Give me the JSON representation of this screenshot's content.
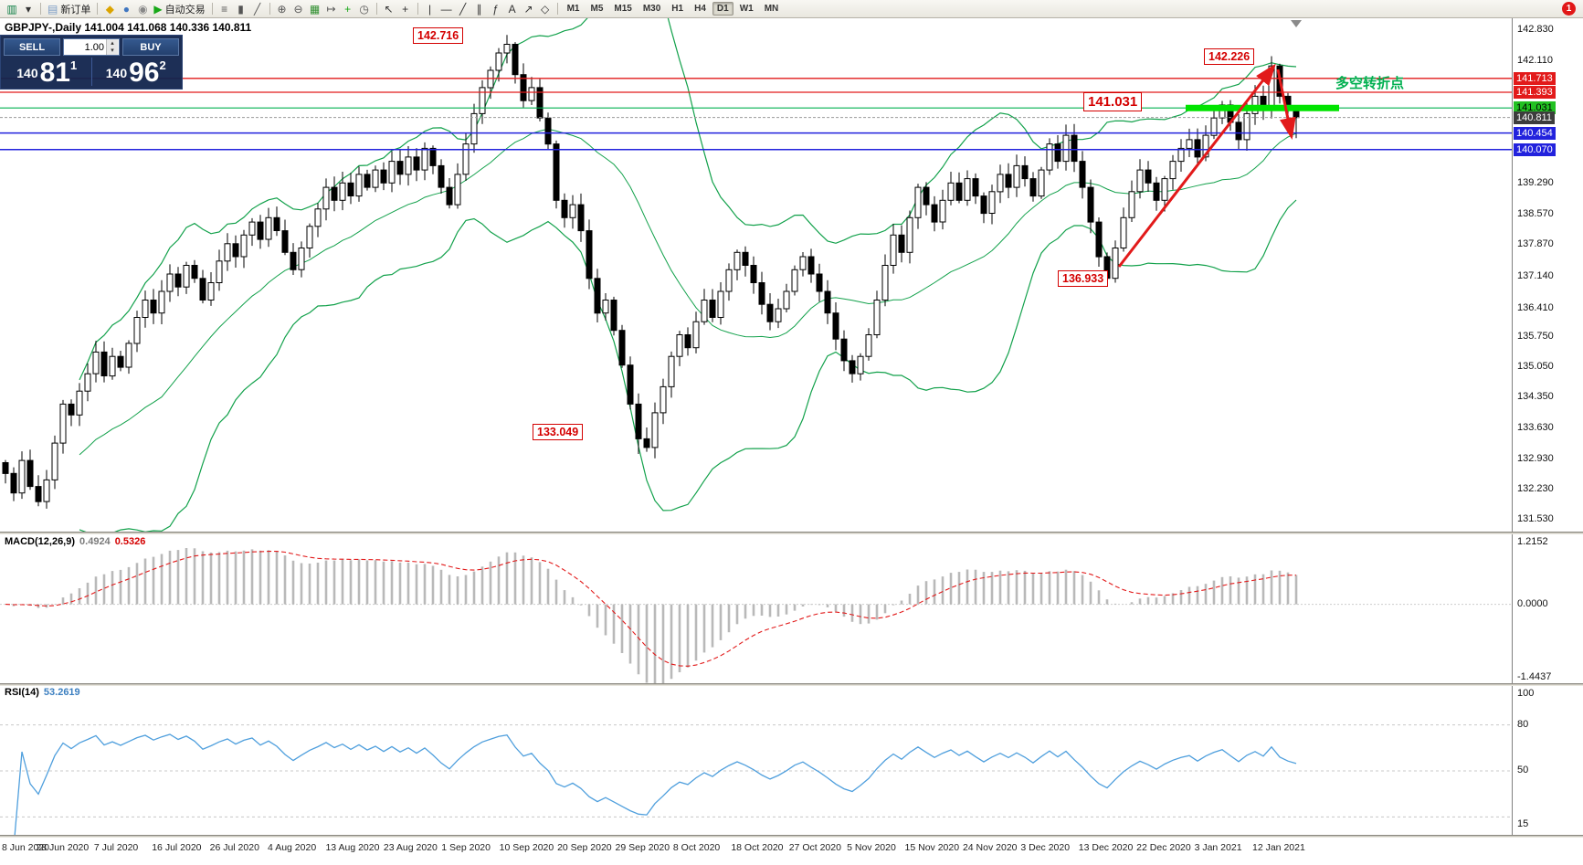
{
  "colors": {
    "candle_up": "#ffffff",
    "candle_down": "#000000",
    "candle_outline": "#000000",
    "bollinger": "#12a14b",
    "macd_histogram": "#b9b9b9",
    "macd_signal": "#e21a1a",
    "rsi_line": "#4f9fdd",
    "highlight_green": "#00e400",
    "arrow_red": "#e21a1a",
    "level_red": "#e21a1a",
    "level_blue": "#2222dd",
    "level_green": "#00b050",
    "bid_line": "#999999"
  },
  "toolbar": {
    "notification_count": "1",
    "timeframes": [
      "M1",
      "M5",
      "M15",
      "M30",
      "H1",
      "H4",
      "D1",
      "W1",
      "MN"
    ],
    "active_timeframe": "D1",
    "items": [
      {
        "type": "icon",
        "name": "chart-window-icon",
        "glyph": "▥",
        "color": "#0b7d43"
      },
      {
        "type": "icon",
        "name": "window-dropdown-icon",
        "glyph": "▾",
        "color": "#333333"
      },
      {
        "type": "sep"
      },
      {
        "type": "button",
        "name": "new-order-button",
        "glyph": "▤",
        "color": "#7a9cc6",
        "label": "新订单"
      },
      {
        "type": "sep"
      },
      {
        "type": "icon",
        "name": "metaeditor-icon",
        "glyph": "◆",
        "color": "#dba400"
      },
      {
        "type": "icon",
        "name": "profiles-icon",
        "glyph": "●",
        "color": "#3f76c0"
      },
      {
        "type": "icon",
        "name": "alerts-icon",
        "glyph": "◉",
        "color": "#888888"
      },
      {
        "type": "button",
        "name": "autotrading-button",
        "glyph": "▶",
        "color": "#18a818",
        "label": "自动交易"
      },
      {
        "type": "sep"
      },
      {
        "type": "icon",
        "name": "bar-chart-mode-icon",
        "glyph": "≡",
        "color": "#555555"
      },
      {
        "type": "icon",
        "name": "candlestick-mode-icon",
        "glyph": "▮",
        "color": "#555555"
      },
      {
        "type": "icon",
        "name": "line-chart-mode-icon",
        "glyph": "╱",
        "color": "#555555"
      },
      {
        "type": "sep"
      },
      {
        "type": "icon",
        "name": "zoom-in-icon",
        "glyph": "⊕",
        "color": "#555555"
      },
      {
        "type": "icon",
        "name": "zoom-out-icon",
        "glyph": "⊖",
        "color": "#555555"
      },
      {
        "type": "icon",
        "name": "tile-windows-icon",
        "glyph": "▦",
        "color": "#2f8f2f"
      },
      {
        "type": "icon",
        "name": "auto-scroll-icon",
        "glyph": "↦",
        "color": "#555555"
      },
      {
        "type": "icon",
        "name": "indicators-icon",
        "glyph": "+",
        "color": "#18a818"
      },
      {
        "type": "icon",
        "name": "periods-icon",
        "glyph": "◷",
        "color": "#555555"
      },
      {
        "type": "sep"
      },
      {
        "type": "icon",
        "name": "cursor-icon",
        "glyph": "↖",
        "color": "#333333"
      },
      {
        "type": "icon",
        "name": "crosshair-icon",
        "glyph": "+",
        "color": "#333333"
      },
      {
        "type": "sep"
      },
      {
        "type": "icon",
        "name": "vertical-line-icon",
        "glyph": "|",
        "color": "#333333"
      },
      {
        "type": "icon",
        "name": "horizontal-line-icon",
        "glyph": "―",
        "color": "#333333"
      },
      {
        "type": "icon",
        "name": "trendline-icon",
        "glyph": "╱",
        "color": "#333333"
      },
      {
        "type": "icon",
        "name": "channel-icon",
        "glyph": "∥",
        "color": "#333333"
      },
      {
        "type": "icon",
        "name": "fibonacci-icon",
        "glyph": "ƒ",
        "color": "#333333"
      },
      {
        "type": "icon",
        "name": "text-icon",
        "glyph": "A",
        "color": "#333333"
      },
      {
        "type": "icon",
        "name": "arrow-object-icon",
        "glyph": "↗",
        "color": "#333333"
      },
      {
        "type": "icon",
        "name": "shapes-icon",
        "glyph": "◇",
        "color": "#333333"
      },
      {
        "type": "sep"
      },
      {
        "type": "timeframes"
      }
    ]
  },
  "trade_panel": {
    "sell_label": "SELL",
    "buy_label": "BUY",
    "volume": "1.00",
    "sell_price": {
      "base": "140",
      "big": "81",
      "sup": "1"
    },
    "buy_price": {
      "base": "140",
      "big": "96",
      "sup": "2"
    }
  },
  "chart": {
    "header": "GBPJPY-,Daily 141.004 141.068 140.336 140.811",
    "annotations": {
      "peak1": "142.716",
      "peak2": "142.226",
      "level": "141.031",
      "low_dec": "136.933",
      "low_sep": "133.049",
      "note": "多空转折点"
    },
    "axis": {
      "ticks": [
        {
          "label": "142.830",
          "price": 142.83
        },
        {
          "label": "142.110",
          "price": 142.11
        },
        {
          "label": "139.290",
          "price": 139.29
        },
        {
          "label": "138.570",
          "price": 138.57
        },
        {
          "label": "137.870",
          "price": 137.87
        },
        {
          "label": "137.140",
          "price": 137.14
        },
        {
          "label": "136.410",
          "price": 136.41
        },
        {
          "label": "135.750",
          "price": 135.75
        },
        {
          "label": "135.050",
          "price": 135.05
        },
        {
          "label": "134.350",
          "price": 134.35
        },
        {
          "label": "133.630",
          "price": 133.63
        },
        {
          "label": "132.930",
          "price": 132.93
        },
        {
          "label": "132.230",
          "price": 132.23
        },
        {
          "label": "131.530",
          "price": 131.53
        }
      ],
      "badges": [
        {
          "label": "141.713",
          "price": 141.713,
          "bg": "#e21a1a",
          "fg": "#ffffff"
        },
        {
          "label": "141.393",
          "price": 141.393,
          "bg": "#e21a1a",
          "fg": "#ffffff"
        },
        {
          "label": "141.031",
          "price": 141.031,
          "bg": "#22c122",
          "fg": "#000000"
        },
        {
          "label": "140.811",
          "price": 140.811,
          "bg": "#3d3d3d",
          "fg": "#ffffff"
        },
        {
          "label": "140.454",
          "price": 140.454,
          "bg": "#2222dd",
          "fg": "#ffffff"
        },
        {
          "label": "140.070",
          "price": 140.07,
          "bg": "#2222dd",
          "fg": "#ffffff"
        }
      ]
    },
    "levels": [
      {
        "price": 141.713,
        "color": "#e21a1a",
        "width": 1.3
      },
      {
        "price": 141.393,
        "color": "#e21a1a",
        "width": 1.3
      },
      {
        "price": 141.031,
        "color": "#00b050",
        "width": 1.2
      },
      {
        "price": 140.811,
        "color": "#999999",
        "width": 1,
        "dash": "3,2"
      },
      {
        "price": 140.454,
        "color": "#2222dd",
        "width": 1.5
      },
      {
        "price": 140.07,
        "color": "#2222dd",
        "width": 1.5
      }
    ]
  },
  "macd": {
    "label": "MACD(12,26,9)",
    "value": "0.4924",
    "signal": "0.5326",
    "ticks": [
      {
        "label": "1.2152",
        "v": 1.2152
      },
      {
        "label": "0.0000",
        "v": 0
      },
      {
        "label": "-1.4437",
        "v": -1.4437
      }
    ],
    "range": [
      -1.4437,
      1.2152
    ]
  },
  "rsi": {
    "label": "RSI(14)",
    "value": "53.2619",
    "ticks": [
      {
        "label": "100",
        "v": 100
      },
      {
        "label": "80",
        "v": 80
      },
      {
        "label": "50",
        "v": 50
      },
      {
        "label": "15",
        "v": 15
      }
    ],
    "levels": [
      80,
      50,
      20
    ]
  },
  "dates": [
    "8 Jun 2020",
    "28 Jun 2020",
    "7 Jul 2020",
    "16 Jul 2020",
    "26 Jul 2020",
    "4 Aug 2020",
    "13 Aug 2020",
    "23 Aug 2020",
    "1 Sep 2020",
    "10 Sep 2020",
    "20 Sep 2020",
    "29 Sep 2020",
    "8 Oct 2020",
    "18 Oct 2020",
    "27 Oct 2020",
    "5 Nov 2020",
    "15 Nov 2020",
    "24 Nov 2020",
    "3 Dec 2020",
    "13 Dec 2020",
    "22 Dec 2020",
    "3 Jan 2021",
    "12 Jan 2021"
  ],
  "chart_data": {
    "type": "candlestick",
    "symbol": "GBPJPY-",
    "timeframe": "Daily",
    "current_ohlc": {
      "open": 141.004,
      "high": 141.068,
      "low": 140.336,
      "close": 140.811
    },
    "marked_points": {
      "sep_peak": 142.716,
      "jan_peak": 142.226,
      "support_level": 141.031,
      "dec_low": 136.933,
      "sep_low": 133.049
    },
    "key_levels": [
      141.713,
      141.393,
      141.031,
      140.454,
      140.07
    ],
    "bid": 140.811,
    "closes": [
      132.6,
      132.15,
      132.9,
      132.3,
      131.95,
      132.45,
      133.3,
      134.2,
      133.95,
      134.5,
      134.9,
      135.4,
      134.85,
      135.3,
      135.05,
      135.6,
      136.2,
      136.6,
      136.3,
      136.8,
      137.2,
      136.9,
      137.4,
      137.1,
      136.6,
      137.0,
      137.5,
      137.9,
      137.6,
      138.1,
      138.4,
      138.0,
      138.5,
      138.2,
      137.7,
      137.3,
      137.8,
      138.3,
      138.7,
      139.2,
      138.9,
      139.3,
      139.0,
      139.5,
      139.2,
      139.6,
      139.3,
      139.8,
      139.5,
      139.9,
      139.6,
      140.1,
      139.7,
      139.2,
      138.8,
      139.5,
      140.2,
      140.9,
      141.5,
      141.9,
      142.3,
      142.5,
      141.8,
      141.2,
      141.5,
      140.8,
      140.2,
      138.9,
      138.5,
      138.8,
      138.2,
      137.1,
      136.3,
      136.6,
      135.9,
      135.1,
      134.2,
      133.4,
      133.2,
      134.0,
      134.6,
      135.3,
      135.8,
      135.5,
      136.1,
      136.6,
      136.2,
      136.8,
      137.3,
      137.7,
      137.4,
      137.0,
      136.5,
      136.1,
      136.4,
      136.8,
      137.3,
      137.6,
      137.2,
      136.8,
      136.3,
      135.7,
      135.2,
      134.9,
      135.3,
      135.8,
      136.6,
      137.4,
      138.1,
      137.7,
      138.5,
      139.2,
      138.8,
      138.4,
      138.9,
      139.3,
      138.9,
      139.4,
      139.0,
      138.6,
      139.1,
      139.5,
      139.2,
      139.7,
      139.4,
      139.0,
      139.6,
      140.2,
      139.8,
      140.4,
      139.8,
      139.2,
      138.4,
      137.6,
      137.1,
      137.8,
      138.5,
      139.1,
      139.6,
      139.3,
      138.9,
      139.4,
      139.8,
      140.1,
      140.3,
      139.9,
      140.4,
      140.8,
      141.1,
      140.7,
      140.3,
      140.9,
      141.3,
      141.0,
      142.0,
      141.3,
      141.0,
      140.811
    ],
    "overrides": {
      "61": {
        "h": 142.716
      },
      "62": {
        "h": 142.55
      },
      "77": {
        "l": 133.049
      },
      "78": {
        "l": 133.1
      },
      "134": {
        "l": 136.933
      },
      "135": {
        "l": 137.0
      },
      "154": {
        "h": 142.226
      },
      "155": {
        "h": 142.05
      },
      "157": {
        "o": 141.004,
        "h": 141.068,
        "l": 140.336,
        "c": 140.811
      }
    },
    "indicators": [
      {
        "type": "bollinger",
        "period": 20,
        "deviation": 2
      },
      {
        "type": "macd",
        "fast": 12,
        "slow": 26,
        "signal": 9,
        "last_value": 0.4924,
        "last_signal": 0.5326,
        "range": [
          -1.4437,
          1.2152
        ]
      },
      {
        "type": "rsi",
        "period": 14,
        "last_value": 53.2619
      }
    ]
  }
}
